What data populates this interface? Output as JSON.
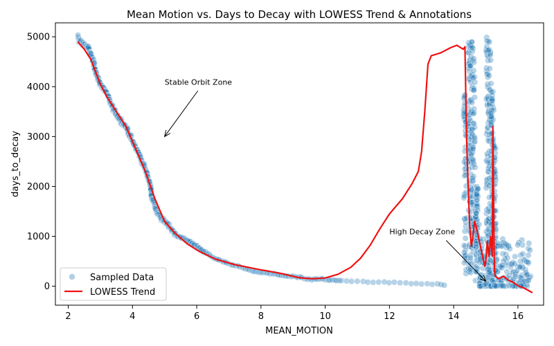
{
  "chart_data": {
    "type": "scatter",
    "title": "Mean Motion vs. Days to Decay with LOWESS Trend & Annotations",
    "xlabel": "MEAN_MOTION",
    "ylabel": "days_to_decay",
    "xlim": [
      1.6,
      16.8
    ],
    "ylim": [
      -380,
      5280
    ],
    "xticks": [
      2,
      4,
      6,
      8,
      10,
      12,
      14,
      16
    ],
    "yticks": [
      0,
      1000,
      2000,
      3000,
      4000,
      5000
    ],
    "grid": false,
    "legend": {
      "position": "lower-left",
      "entries": [
        "Sampled Data",
        "LOWESS Trend"
      ]
    },
    "colors": {
      "scatter": "#1f77b4",
      "trend": "#ee1111"
    },
    "series": [
      {
        "name": "Sampled Data",
        "kind": "scatter",
        "main_curve": [
          [
            2.3,
            5000
          ],
          [
            2.35,
            4900
          ],
          [
            2.5,
            4850
          ],
          [
            2.65,
            4750
          ],
          [
            2.8,
            4450
          ],
          [
            2.9,
            4200
          ],
          [
            3.0,
            4050
          ],
          [
            3.2,
            3850
          ],
          [
            3.4,
            3550
          ],
          [
            3.6,
            3350
          ],
          [
            3.8,
            3200
          ],
          [
            4.0,
            2900
          ],
          [
            4.2,
            2650
          ],
          [
            4.4,
            2350
          ],
          [
            4.55,
            2050
          ],
          [
            4.6,
            1800
          ],
          [
            4.75,
            1500
          ],
          [
            4.9,
            1350
          ],
          [
            5.1,
            1250
          ],
          [
            5.3,
            1050
          ],
          [
            5.6,
            950
          ],
          [
            5.9,
            850
          ],
          [
            6.2,
            700
          ],
          [
            6.6,
            550
          ],
          [
            7.0,
            450
          ],
          [
            7.5,
            350
          ],
          [
            8.0,
            280
          ],
          [
            8.5,
            230
          ],
          [
            9.0,
            190
          ],
          [
            9.5,
            150
          ],
          [
            10.0,
            130
          ],
          [
            10.5,
            110
          ],
          [
            11.0,
            100
          ],
          [
            11.5,
            85
          ],
          [
            12.0,
            70
          ],
          [
            12.5,
            60
          ],
          [
            13.0,
            50
          ],
          [
            13.5,
            40
          ],
          [
            13.8,
            30
          ]
        ],
        "columns": [
          {
            "x": 14.35,
            "y_min": 50,
            "y_max": 3900
          },
          {
            "x": 14.48,
            "y_min": 200,
            "y_max": 5000
          },
          {
            "x": 14.55,
            "y_min": 50,
            "y_max": 5000
          },
          {
            "x": 14.62,
            "y_min": 400,
            "y_max": 4700
          },
          {
            "x": 14.72,
            "y_min": 100,
            "y_max": 2000
          },
          {
            "x": 15.05,
            "y_min": 200,
            "y_max": 5000
          },
          {
            "x": 15.12,
            "y_min": 100,
            "y_max": 5000
          },
          {
            "x": 15.2,
            "y_min": 50,
            "y_max": 3900
          },
          {
            "x": 15.28,
            "y_min": 30,
            "y_max": 2900
          }
        ],
        "low_cluster": {
          "x_min": 14.8,
          "x_max": 16.4,
          "y_min": 0,
          "y_max": 950
        }
      },
      {
        "name": "LOWESS Trend",
        "kind": "line",
        "x": [
          2.3,
          2.5,
          2.7,
          2.85,
          3.0,
          3.2,
          3.5,
          3.8,
          4.1,
          4.4,
          4.7,
          5.0,
          5.3,
          5.7,
          6.1,
          6.6,
          7.2,
          7.9,
          8.6,
          9.2,
          9.6,
          10.0,
          10.4,
          10.8,
          11.1,
          11.4,
          11.7,
          12.0,
          12.4,
          12.7,
          12.9,
          13.0,
          13.1,
          13.2,
          13.3,
          13.6,
          13.9,
          14.1,
          14.3,
          14.35,
          14.4,
          14.45,
          14.5,
          14.55,
          14.6,
          14.65,
          14.7,
          14.8,
          14.9,
          14.97,
          15.0,
          15.05,
          15.1,
          15.15,
          15.2,
          15.22,
          15.25,
          15.27,
          15.3,
          15.4,
          15.55,
          15.7,
          15.85,
          16.0,
          16.2,
          16.45
        ],
        "y": [
          4900,
          4750,
          4550,
          4300,
          4050,
          3800,
          3500,
          3200,
          2750,
          2300,
          1750,
          1300,
          1080,
          850,
          690,
          540,
          430,
          340,
          260,
          170,
          150,
          165,
          240,
          380,
          560,
          820,
          1150,
          1450,
          1750,
          2050,
          2300,
          2700,
          3500,
          4450,
          4620,
          4680,
          4780,
          4830,
          4750,
          4800,
          3000,
          2000,
          1200,
          800,
          1000,
          1300,
          1200,
          900,
          600,
          400,
          500,
          900,
          600,
          1000,
          600,
          3200,
          1200,
          300,
          200,
          150,
          200,
          120,
          80,
          10,
          -40,
          -130
        ]
      }
    ],
    "annotations": [
      {
        "text": "Stable Orbit Zone",
        "text_at": [
          5.0,
          4000
        ],
        "points_to": [
          5.0,
          3000
        ]
      },
      {
        "text": "High Decay Zone",
        "text_at": [
          12.0,
          1000
        ],
        "points_to": [
          15.0,
          100
        ]
      }
    ]
  }
}
